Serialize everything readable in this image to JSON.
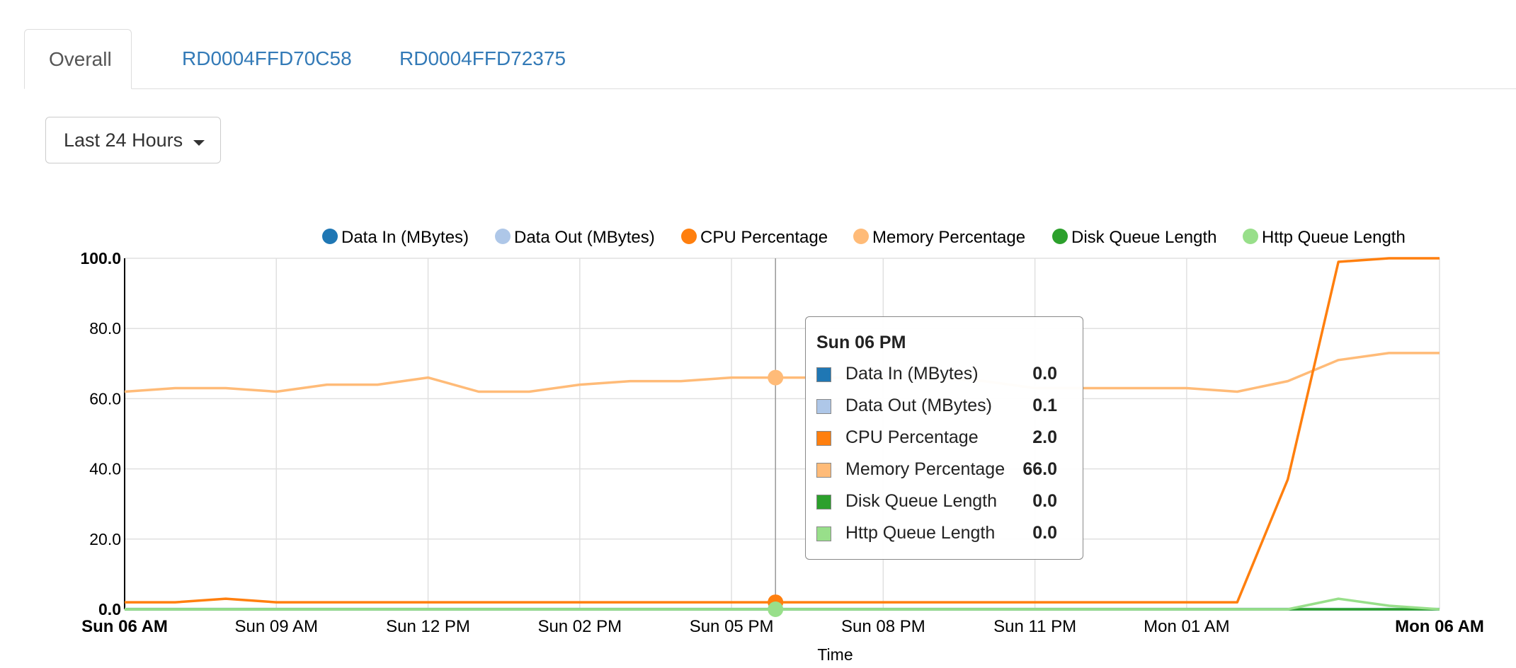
{
  "tabs": [
    {
      "label": "Overall",
      "active": true
    },
    {
      "label": "RD0004FFD70C58",
      "active": false
    },
    {
      "label": "RD0004FFD72375",
      "active": false
    }
  ],
  "range_selector": {
    "label": "Last 24 Hours"
  },
  "tooltip": {
    "title": "Sun 06 PM",
    "rows": [
      {
        "name": "Data In (MBytes)",
        "value": "0.0",
        "color": "#1f77b4"
      },
      {
        "name": "Data Out (MBytes)",
        "value": "0.1",
        "color": "#aec7e8"
      },
      {
        "name": "CPU Percentage",
        "value": "2.0",
        "color": "#ff7f0e"
      },
      {
        "name": "Memory Percentage",
        "value": "66.0",
        "color": "#ffbb78"
      },
      {
        "name": "Disk Queue Length",
        "value": "0.0",
        "color": "#2ca02c"
      },
      {
        "name": "Http Queue Length",
        "value": "0.0",
        "color": "#98df8a"
      }
    ]
  },
  "chart_data": {
    "type": "line",
    "xlabel": "Time",
    "ylim": [
      0,
      100
    ],
    "y_ticks": [
      "0.0",
      "20.0",
      "40.0",
      "60.0",
      "80.0",
      "100.0"
    ],
    "x_ticks": [
      {
        "label": "Sun 06 AM",
        "hour": 0,
        "bold": true
      },
      {
        "label": "Sun 09 AM",
        "hour": 3
      },
      {
        "label": "Sun 12 PM",
        "hour": 6
      },
      {
        "label": "Sun 02 PM",
        "hour": 9
      },
      {
        "label": "Sun 05 PM",
        "hour": 12
      },
      {
        "label": "Sun 08 PM",
        "hour": 15
      },
      {
        "label": "Sun 11 PM",
        "hour": 18
      },
      {
        "label": "Mon 01 AM",
        "hour": 21
      },
      {
        "label": "Mon 06 AM",
        "hour": 26,
        "bold": true
      }
    ],
    "x_hours": [
      0,
      1,
      2,
      3,
      4,
      5,
      6,
      7,
      8,
      9,
      10,
      11,
      12,
      13,
      14,
      15,
      16,
      17,
      18,
      19,
      20,
      21,
      22,
      23,
      24,
      25,
      26
    ],
    "grid": true,
    "legend_position": "top-right",
    "hover_hour": 12.87,
    "series": [
      {
        "name": "Data In (MBytes)",
        "color": "#1f77b4",
        "values": [
          0,
          0,
          0,
          0,
          0,
          0,
          0,
          0,
          0,
          0,
          0,
          0,
          0,
          0,
          0,
          0,
          0,
          0,
          0,
          0,
          0,
          0,
          0,
          0,
          0,
          0,
          0
        ]
      },
      {
        "name": "Data Out (MBytes)",
        "color": "#aec7e8",
        "values": [
          0.1,
          0.1,
          0.1,
          0.1,
          0.1,
          0.1,
          0.1,
          0.1,
          0.1,
          0.1,
          0.1,
          0.1,
          0.1,
          0.1,
          0.1,
          0.1,
          0.1,
          0.1,
          0.1,
          0.1,
          0.1,
          0.1,
          0.1,
          0.1,
          0.1,
          0.1,
          0.1
        ]
      },
      {
        "name": "CPU Percentage",
        "color": "#ff7f0e",
        "values": [
          2,
          2,
          3,
          2,
          2,
          2,
          2,
          2,
          2,
          2,
          2,
          2,
          2,
          2,
          2,
          2,
          2,
          2,
          2,
          2,
          2,
          2,
          2,
          37,
          99,
          100,
          100
        ]
      },
      {
        "name": "Memory Percentage",
        "color": "#ffbb78",
        "values": [
          62,
          63,
          63,
          62,
          64,
          64,
          66,
          62,
          62,
          64,
          65,
          65,
          66,
          66,
          66,
          66,
          66,
          65,
          63,
          63,
          63,
          63,
          62,
          65,
          71,
          73,
          73
        ]
      },
      {
        "name": "Disk Queue Length",
        "color": "#2ca02c",
        "values": [
          0,
          0,
          0,
          0,
          0,
          0,
          0,
          0,
          0,
          0,
          0,
          0,
          0,
          0,
          0,
          0,
          0,
          0,
          0,
          0,
          0,
          0,
          0,
          0,
          0,
          0,
          0
        ]
      },
      {
        "name": "Http Queue Length",
        "color": "#98df8a",
        "values": [
          0,
          0,
          0,
          0,
          0,
          0,
          0,
          0,
          0,
          0,
          0,
          0,
          0,
          0,
          0,
          0,
          0,
          0,
          0,
          0,
          0,
          0,
          0,
          0,
          3,
          1,
          0
        ]
      }
    ]
  }
}
